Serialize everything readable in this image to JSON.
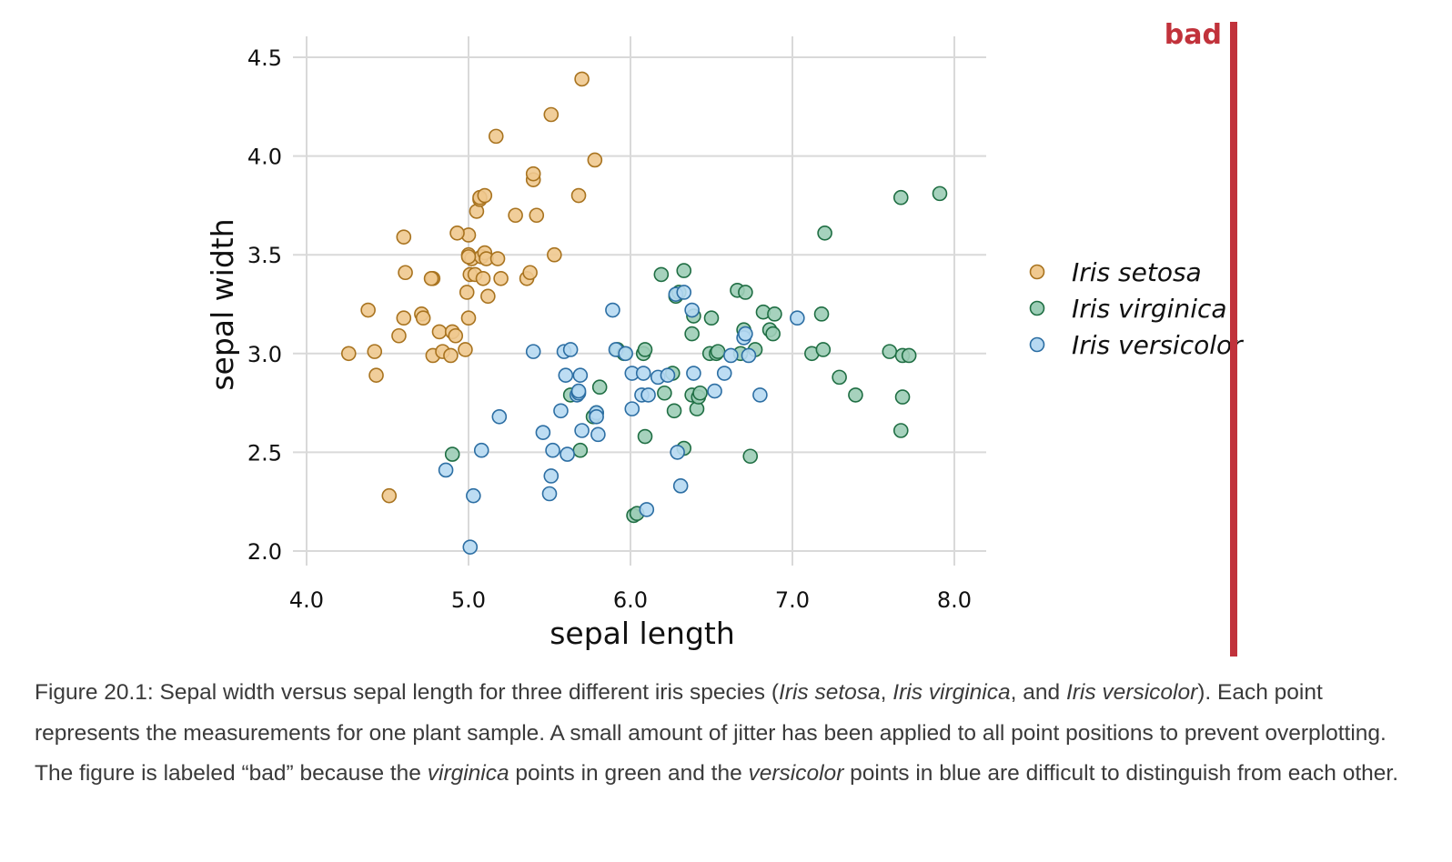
{
  "badge": {
    "label": "bad",
    "color": "#c1323b"
  },
  "chart_data": {
    "type": "scatter",
    "xlabel": "sepal length",
    "ylabel": "sepal width",
    "xlim": [
      4.0,
      8.2
    ],
    "ylim": [
      2.0,
      4.6
    ],
    "xticks": [
      4.0,
      5.0,
      6.0,
      7.0,
      8.0
    ],
    "yticks": [
      2.0,
      2.5,
      3.0,
      3.5,
      4.0,
      4.5
    ],
    "xtick_labels": [
      "4.0",
      "5.0",
      "6.0",
      "7.0",
      "8.0"
    ],
    "ytick_labels": [
      "2.0",
      "2.5",
      "3.0",
      "3.5",
      "4.0",
      "4.5"
    ],
    "grid": true,
    "legend": {
      "placement": "right"
    },
    "series": [
      {
        "name": "Iris setosa",
        "fill": "#f0c98f",
        "stroke": "#a8731f",
        "x": [
          4.26,
          4.42,
          4.43,
          4.38,
          4.51,
          4.57,
          4.6,
          4.61,
          4.6,
          4.71,
          4.72,
          4.78,
          4.78,
          4.77,
          4.82,
          4.84,
          4.89,
          4.9,
          4.92,
          4.98,
          4.99,
          5.0,
          5.0,
          5.0,
          5.01,
          5.02,
          5.04,
          5.05,
          5.07,
          5.07,
          5.08,
          5.09,
          5.1,
          5.1,
          5.11,
          5.12,
          5.17,
          5.18,
          5.2,
          5.29,
          5.36,
          5.38,
          5.4,
          5.4,
          5.42,
          5.51,
          5.53,
          5.68,
          5.7,
          5.78,
          4.93,
          5.0
        ],
        "y": [
          3.0,
          3.01,
          2.89,
          3.22,
          2.28,
          3.09,
          3.18,
          3.41,
          3.59,
          3.2,
          3.18,
          2.99,
          3.38,
          3.38,
          3.11,
          3.01,
          2.99,
          3.11,
          3.09,
          3.02,
          3.31,
          3.18,
          3.5,
          3.6,
          3.4,
          3.48,
          3.4,
          3.72,
          3.78,
          3.79,
          3.49,
          3.38,
          3.8,
          3.51,
          3.48,
          3.29,
          4.1,
          3.48,
          3.38,
          3.7,
          3.38,
          3.41,
          3.88,
          3.91,
          3.7,
          4.21,
          3.5,
          3.8,
          4.39,
          3.98,
          3.61,
          3.49
        ]
      },
      {
        "name": "Iris virginica",
        "fill": "#9ccdb6",
        "stroke": "#1f6e43",
        "x": [
          4.9,
          5.63,
          5.69,
          5.77,
          5.79,
          5.81,
          5.92,
          5.96,
          6.08,
          6.09,
          6.09,
          6.02,
          6.04,
          6.19,
          6.21,
          6.26,
          6.27,
          6.28,
          6.3,
          6.33,
          6.33,
          6.38,
          6.38,
          6.39,
          6.41,
          6.42,
          6.43,
          6.49,
          6.5,
          6.53,
          6.54,
          6.66,
          6.68,
          6.7,
          6.71,
          6.74,
          6.77,
          6.82,
          6.86,
          6.88,
          6.89,
          7.12,
          7.18,
          7.19,
          7.2,
          7.29,
          7.39,
          7.6,
          7.67,
          7.68,
          7.68,
          7.72,
          7.67,
          7.91
        ],
        "y": [
          2.49,
          2.79,
          2.51,
          2.68,
          2.7,
          2.83,
          3.02,
          3.0,
          3.0,
          3.02,
          2.58,
          2.18,
          2.19,
          3.4,
          2.8,
          2.9,
          2.71,
          3.29,
          3.31,
          3.42,
          2.52,
          2.79,
          3.1,
          3.19,
          2.72,
          2.78,
          2.8,
          3.0,
          3.18,
          3.0,
          3.01,
          3.32,
          3.0,
          3.12,
          3.31,
          2.48,
          3.02,
          3.21,
          3.12,
          3.1,
          3.2,
          3.0,
          3.2,
          3.02,
          3.61,
          2.88,
          2.79,
          3.01,
          2.61,
          2.78,
          2.99,
          2.99,
          3.79,
          3.81
        ]
      },
      {
        "name": "Iris versicolor",
        "fill": "#b6d9f2",
        "stroke": "#2c6ea3",
        "x": [
          4.86,
          5.01,
          5.03,
          5.08,
          5.19,
          5.4,
          5.46,
          5.5,
          5.51,
          5.52,
          5.57,
          5.59,
          5.6,
          5.61,
          5.63,
          5.67,
          5.68,
          5.68,
          5.69,
          5.7,
          5.79,
          5.79,
          5.8,
          5.89,
          5.91,
          5.97,
          6.01,
          6.01,
          6.07,
          6.08,
          6.11,
          6.1,
          6.17,
          6.23,
          6.28,
          6.29,
          6.31,
          6.33,
          6.38,
          6.39,
          6.52,
          6.58,
          6.62,
          6.7,
          6.71,
          6.73,
          6.8,
          7.03
        ],
        "y": [
          2.41,
          2.02,
          2.28,
          2.51,
          2.68,
          3.01,
          2.6,
          2.29,
          2.38,
          2.51,
          2.71,
          3.01,
          2.89,
          2.49,
          3.02,
          2.79,
          2.8,
          2.81,
          2.89,
          2.61,
          2.7,
          2.68,
          2.59,
          3.22,
          3.02,
          3.0,
          2.72,
          2.9,
          2.79,
          2.9,
          2.79,
          2.21,
          2.88,
          2.89,
          3.3,
          2.5,
          2.33,
          3.31,
          3.22,
          2.9,
          2.81,
          2.9,
          2.99,
          3.08,
          3.1,
          2.99,
          2.79,
          3.18
        ]
      }
    ]
  },
  "caption": {
    "p1": "Figure 20.1: Sepal width versus sepal length for three different iris species (",
    "it1": "Iris setosa",
    "p2": ", ",
    "it2": "Iris virginica",
    "p3": ", and ",
    "it3": "Iris versicolor",
    "p4": "). Each point represents the measurements for one plant sample. A small amount of jitter has been applied to all point positions to prevent overplotting. The figure is labeled “bad” because the ",
    "it4": "virginica",
    "p5": " points in green and the ",
    "it5": "versicolor",
    "p6": " points in blue are difficult to distinguish from each other."
  }
}
